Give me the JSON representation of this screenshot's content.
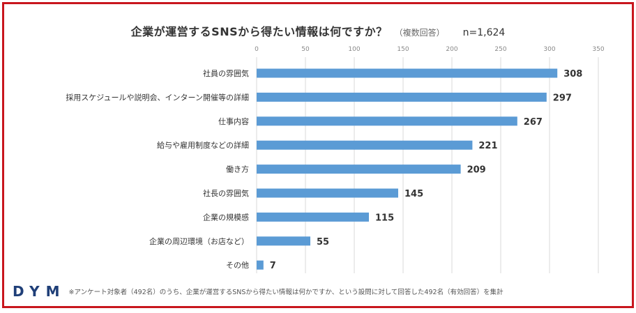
{
  "header": {
    "title": "企業が運営するSNSから得たい情報は何ですか？",
    "subtitle": "（複数回答）",
    "n_label": "n=1,624"
  },
  "chart_data": {
    "type": "bar",
    "orientation": "horizontal",
    "title": "企業が運営するSNSから得たい情報は何ですか？",
    "categories": [
      "社員の雰囲気",
      "採用スケジュールや説明会、インターン開催等の詳細",
      "仕事内容",
      "給与や雇用制度などの詳細",
      "働き方",
      "社長の雰囲気",
      "企業の規模感",
      "企業の周辺環境（お店など）",
      "その他"
    ],
    "values": [
      308,
      297,
      267,
      221,
      209,
      145,
      115,
      55,
      7
    ],
    "xlim": [
      0,
      350
    ],
    "xticks": [
      0,
      50,
      100,
      150,
      200,
      250,
      300,
      350
    ],
    "grid": true,
    "bar_color": "#5b9bd5"
  },
  "footer": {
    "logo": "DYM",
    "note": "※アンケート対象者（492名）のうち、企業が運営するSNSから得たい情報は何かですか、という設問に対して回答した492名（有効回答）を集計"
  }
}
